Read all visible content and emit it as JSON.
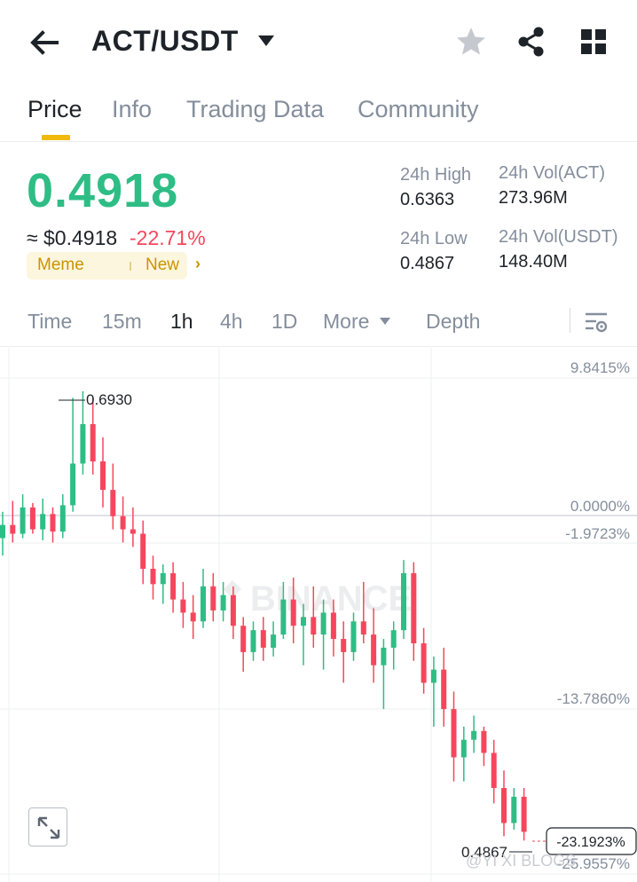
{
  "header": {
    "pair": "ACT/USDT",
    "icons": {
      "back": "arrow-left-icon",
      "dropdown": "caret-down-icon",
      "favorite": "star-icon",
      "share": "share-icon",
      "grid": "grid-icon"
    }
  },
  "tabs": [
    {
      "label": "Price",
      "active": true
    },
    {
      "label": "Info",
      "active": false
    },
    {
      "label": "Trading Data",
      "active": false
    },
    {
      "label": "Community",
      "active": false
    }
  ],
  "ticker": {
    "last_price": "0.4918",
    "approx_usd": "≈ $0.4918",
    "change_pct": "-22.71%",
    "tags": [
      "Meme",
      "New"
    ],
    "stats": {
      "high_label": "24h High",
      "high_value": "0.6363",
      "low_label": "24h Low",
      "low_value": "0.4867",
      "vol_base_label": "24h Vol(ACT)",
      "vol_base_value": "273.96M",
      "vol_quote_label": "24h Vol(USDT)",
      "vol_quote_value": "148.40M"
    }
  },
  "intervals": {
    "items": [
      "Time",
      "15m",
      "1h",
      "4h",
      "1D",
      "More",
      "Depth"
    ],
    "active": "1h"
  },
  "chart": {
    "right_labels": [
      "9.8415%",
      "0.0000%",
      "-1.9723%",
      "-13.7860%"
    ],
    "current_pct": "-23.1923%",
    "high_marker": "0.6930",
    "low_marker": "0.4867",
    "bottom_pct_partial": "-25.9557%",
    "watermark_brand": "BINANCE",
    "watermark_credit": "@YI XI BLOGS",
    "colors": {
      "up": "#2ebd85",
      "down": "#f6465d"
    }
  },
  "chart_data": {
    "type": "candlestick",
    "interval": "1h",
    "ylim": [
      0.48,
      0.71
    ],
    "reference_price": 0.6363,
    "candles": [
      [
        0.626,
        0.638,
        0.618,
        0.632
      ],
      [
        0.632,
        0.643,
        0.624,
        0.628
      ],
      [
        0.628,
        0.646,
        0.626,
        0.64
      ],
      [
        0.64,
        0.642,
        0.628,
        0.63
      ],
      [
        0.63,
        0.644,
        0.625,
        0.637
      ],
      [
        0.637,
        0.64,
        0.624,
        0.629
      ],
      [
        0.629,
        0.646,
        0.626,
        0.641
      ],
      [
        0.641,
        0.69,
        0.638,
        0.66
      ],
      [
        0.66,
        0.693,
        0.655,
        0.678
      ],
      [
        0.678,
        0.69,
        0.655,
        0.661
      ],
      [
        0.661,
        0.672,
        0.64,
        0.648
      ],
      [
        0.648,
        0.66,
        0.63,
        0.636
      ],
      [
        0.636,
        0.645,
        0.624,
        0.63
      ],
      [
        0.63,
        0.64,
        0.622,
        0.628
      ],
      [
        0.628,
        0.634,
        0.605,
        0.612
      ],
      [
        0.612,
        0.618,
        0.598,
        0.605
      ],
      [
        0.605,
        0.614,
        0.596,
        0.61
      ],
      [
        0.61,
        0.615,
        0.592,
        0.598
      ],
      [
        0.598,
        0.606,
        0.585,
        0.592
      ],
      [
        0.592,
        0.6,
        0.58,
        0.588
      ],
      [
        0.588,
        0.612,
        0.585,
        0.604
      ],
      [
        0.604,
        0.61,
        0.588,
        0.593
      ],
      [
        0.593,
        0.606,
        0.588,
        0.6
      ],
      [
        0.6,
        0.604,
        0.58,
        0.586
      ],
      [
        0.586,
        0.59,
        0.565,
        0.574
      ],
      [
        0.574,
        0.588,
        0.57,
        0.584
      ],
      [
        0.584,
        0.59,
        0.57,
        0.576
      ],
      [
        0.576,
        0.588,
        0.572,
        0.582
      ],
      [
        0.582,
        0.606,
        0.58,
        0.598
      ],
      [
        0.598,
        0.608,
        0.578,
        0.586
      ],
      [
        0.586,
        0.596,
        0.568,
        0.59
      ],
      [
        0.59,
        0.604,
        0.576,
        0.582
      ],
      [
        0.582,
        0.598,
        0.566,
        0.592
      ],
      [
        0.592,
        0.598,
        0.572,
        0.58
      ],
      [
        0.58,
        0.588,
        0.56,
        0.574
      ],
      [
        0.574,
        0.592,
        0.57,
        0.588
      ],
      [
        0.588,
        0.606,
        0.578,
        0.582
      ],
      [
        0.582,
        0.594,
        0.56,
        0.568
      ],
      [
        0.568,
        0.58,
        0.548,
        0.576
      ],
      [
        0.576,
        0.588,
        0.566,
        0.584
      ],
      [
        0.584,
        0.616,
        0.58,
        0.61
      ],
      [
        0.61,
        0.615,
        0.57,
        0.578
      ],
      [
        0.578,
        0.585,
        0.555,
        0.56
      ],
      [
        0.56,
        0.572,
        0.54,
        0.566
      ],
      [
        0.566,
        0.576,
        0.54,
        0.548
      ],
      [
        0.548,
        0.556,
        0.515,
        0.526
      ],
      [
        0.526,
        0.54,
        0.515,
        0.534
      ],
      [
        0.534,
        0.545,
        0.528,
        0.538
      ],
      [
        0.538,
        0.54,
        0.522,
        0.528
      ],
      [
        0.528,
        0.534,
        0.505,
        0.512
      ],
      [
        0.512,
        0.52,
        0.49,
        0.496
      ],
      [
        0.496,
        0.512,
        0.493,
        0.508
      ],
      [
        0.508,
        0.512,
        0.488,
        0.492
      ]
    ]
  }
}
